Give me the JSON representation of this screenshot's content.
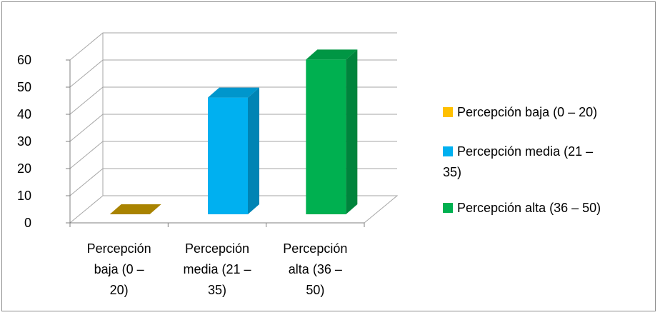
{
  "chart_data": {
    "type": "bar",
    "categories": [
      [
        "Percepción",
        "baja (0 –",
        "20)"
      ],
      [
        "Percepción",
        "media (21 –",
        "35)"
      ],
      [
        "Percepción",
        "alta (36 –",
        "50)"
      ]
    ],
    "values": [
      0,
      43,
      57
    ],
    "colors": [
      "#c79a00",
      "#00b0f0",
      "#00b050"
    ],
    "ylim": [
      0,
      60
    ],
    "yticks": [
      "0",
      "10",
      "20",
      "30",
      "40",
      "50",
      "60"
    ],
    "grid": true,
    "three_d": true,
    "legend": {
      "position": "right",
      "entries": [
        {
          "lines": [
            "Percepción baja (0 – 20)"
          ],
          "color": "#ffc000"
        },
        {
          "lines": [
            "Percepción media (21 –",
            "35)"
          ],
          "color": "#00b0f0"
        },
        {
          "lines": [
            "Percepción alta (36 – 50)"
          ],
          "color": "#00b050"
        }
      ]
    }
  }
}
